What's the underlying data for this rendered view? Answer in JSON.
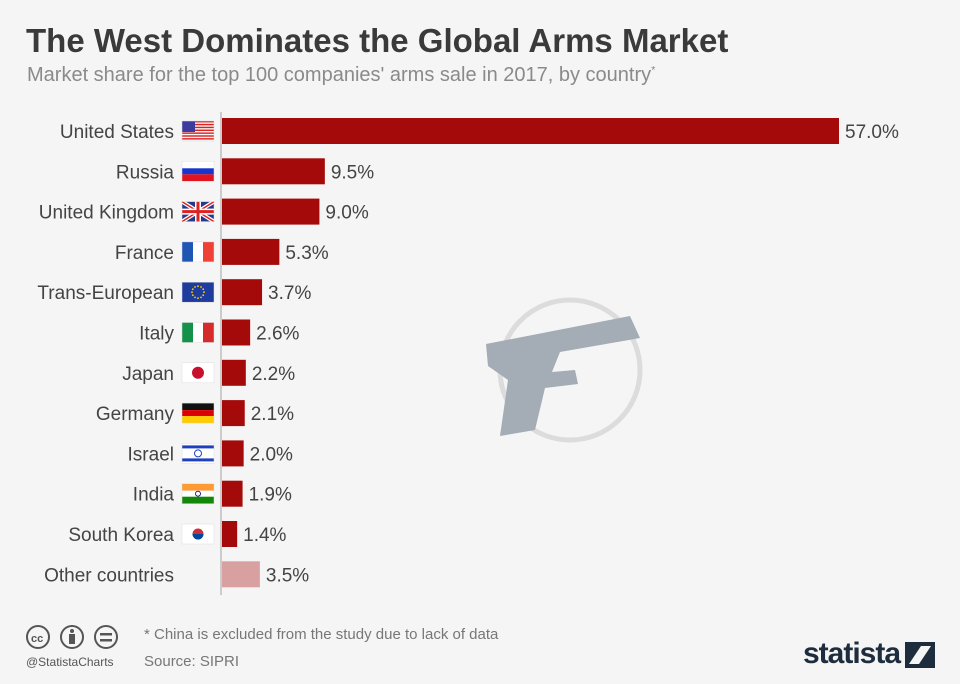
{
  "title": "The West Dominates the Global Arms Market",
  "subtitle": "Market share for the top 100 companies' arms sale in 2017, by country",
  "subtitle_marker": "*",
  "footnote": "* China is excluded from the study due to lack of data",
  "source": "Source: SIPRI",
  "handle": "@StatistaCharts",
  "brand": "statista",
  "colors": {
    "bar": "#a50a0a",
    "other": "#d9a0a2",
    "background": "#f5f5f5"
  },
  "chart_data": {
    "type": "bar",
    "orientation": "horizontal",
    "categories": [
      "United States",
      "Russia",
      "United Kingdom",
      "France",
      "Trans-European",
      "Italy",
      "Japan",
      "Germany",
      "Israel",
      "India",
      "South Korea",
      "Other countries"
    ],
    "flags": [
      "us-flag",
      "russia-flag",
      "uk-flag",
      "france-flag",
      "eu-flag",
      "italy-flag",
      "japan-flag",
      "germany-flag",
      "israel-flag",
      "india-flag",
      "south-korea-flag",
      ""
    ],
    "values": [
      57.0,
      9.5,
      9.0,
      5.3,
      3.7,
      2.6,
      2.2,
      2.1,
      2.0,
      1.9,
      1.4,
      3.5
    ],
    "value_labels": [
      "57.0%",
      "9.5%",
      "9.0%",
      "5.3%",
      "3.7%",
      "2.6%",
      "2.2%",
      "2.1%",
      "2.0%",
      "1.9%",
      "1.4%",
      "3.5%"
    ],
    "unit": "%",
    "grid": false
  }
}
